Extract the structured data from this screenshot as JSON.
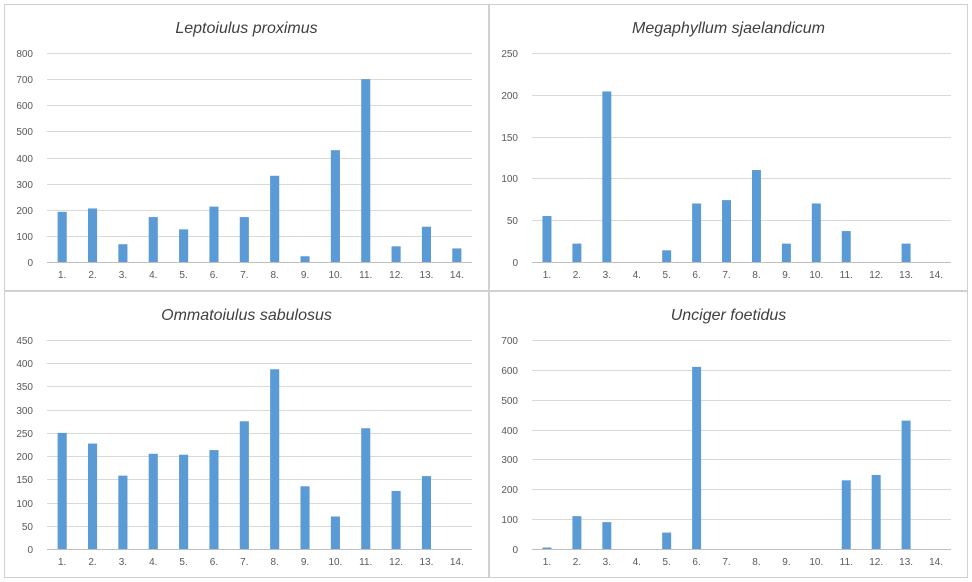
{
  "chart_data": [
    {
      "type": "bar",
      "title": "Leptoiulus proximus",
      "categories": [
        "1.",
        "2.",
        "3.",
        "4.",
        "5.",
        "6.",
        "7.",
        "8.",
        "9.",
        "10.",
        "11.",
        "12.",
        "13.",
        "14."
      ],
      "values": [
        192,
        205,
        68,
        172,
        125,
        212,
        172,
        330,
        22,
        428,
        700,
        60,
        135,
        52
      ],
      "ylim": [
        0,
        800
      ],
      "yticks": [
        "0",
        "100",
        "200",
        "300",
        "400",
        "500",
        "600",
        "700",
        "800"
      ],
      "grid": true,
      "color": "#5b9bd5"
    },
    {
      "type": "bar",
      "title": "Megaphyllum sjaelandicum",
      "categories": [
        "1.",
        "2.",
        "3.",
        "4.",
        "5.",
        "6.",
        "7.",
        "8.",
        "9.",
        "10.",
        "11.",
        "12.",
        "13.",
        "14."
      ],
      "values": [
        55,
        22,
        204,
        0,
        14,
        70,
        74,
        110,
        22,
        70,
        37,
        0,
        22,
        0
      ],
      "ylim": [
        0,
        250
      ],
      "yticks": [
        "0",
        "50",
        "100",
        "150",
        "200",
        "250"
      ],
      "grid": true,
      "color": "#5b9bd5"
    },
    {
      "type": "bar",
      "title": "Ommatoiulus sabulosus",
      "categories": [
        "1.",
        "2.",
        "3.",
        "4.",
        "5.",
        "6.",
        "7.",
        "8.",
        "9.",
        "10.",
        "11.",
        "12.",
        "13.",
        "14."
      ],
      "values": [
        250,
        227,
        158,
        205,
        203,
        213,
        275,
        387,
        135,
        70,
        260,
        125,
        157,
        0
      ],
      "ylim": [
        0,
        450
      ],
      "yticks": [
        "0",
        "50",
        "100",
        "150",
        "200",
        "250",
        "300",
        "350",
        "400",
        "450"
      ],
      "grid": true,
      "color": "#5b9bd5"
    },
    {
      "type": "bar",
      "title": "Unciger foetidus",
      "categories": [
        "1.",
        "2.",
        "3.",
        "4.",
        "5.",
        "6.",
        "7.",
        "8.",
        "9.",
        "10.",
        "11.",
        "12.",
        "13.",
        "14."
      ],
      "values": [
        5,
        110,
        90,
        0,
        55,
        610,
        0,
        0,
        0,
        0,
        230,
        248,
        430,
        0
      ],
      "ylim": [
        0,
        700
      ],
      "yticks": [
        "0",
        "100",
        "200",
        "300",
        "400",
        "500",
        "600",
        "700"
      ],
      "grid": true,
      "color": "#5b9bd5"
    }
  ]
}
